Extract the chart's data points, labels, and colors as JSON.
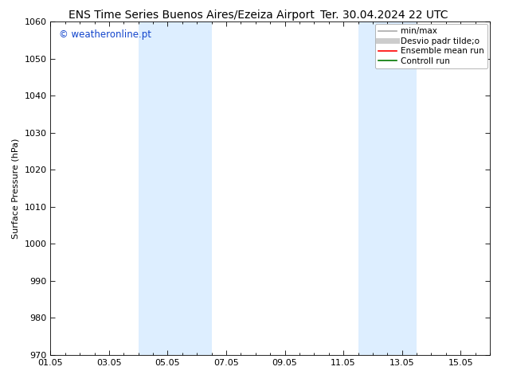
{
  "title_left": "ENS Time Series Buenos Aires/Ezeiza Airport",
  "title_right": "Ter. 30.04.2024 22 UTC",
  "ylabel": "Surface Pressure (hPa)",
  "ylim": [
    970,
    1060
  ],
  "yticks": [
    970,
    980,
    990,
    1000,
    1010,
    1020,
    1030,
    1040,
    1050,
    1060
  ],
  "xlim": [
    0,
    15
  ],
  "xtick_labels": [
    "01.05",
    "03.05",
    "05.05",
    "07.05",
    "09.05",
    "11.05",
    "13.05",
    "15.05"
  ],
  "xtick_positions": [
    0,
    2,
    4,
    6,
    8,
    10,
    12,
    14
  ],
  "shaded_bands": [
    {
      "x_start": 3.0,
      "x_end": 5.5,
      "color": "#ddeeff"
    },
    {
      "x_start": 10.5,
      "x_end": 12.5,
      "color": "#ddeeff"
    }
  ],
  "watermark_text": "© weatheronline.pt",
  "watermark_color": "#1144cc",
  "legend_entries": [
    {
      "label": "min/max",
      "color": "#aaaaaa",
      "lw": 1.2,
      "ls": "-"
    },
    {
      "label": "Desvio padr tilde;o",
      "color": "#cccccc",
      "lw": 5,
      "ls": "-"
    },
    {
      "label": "Ensemble mean run",
      "color": "#ff0000",
      "lw": 1.2,
      "ls": "-"
    },
    {
      "label": "Controll run",
      "color": "#007700",
      "lw": 1.2,
      "ls": "-"
    }
  ],
  "bg_color": "#ffffff",
  "plot_bg_color": "#ffffff",
  "title_fontsize": 10,
  "axis_label_fontsize": 8,
  "tick_fontsize": 8,
  "legend_fontsize": 7.5
}
